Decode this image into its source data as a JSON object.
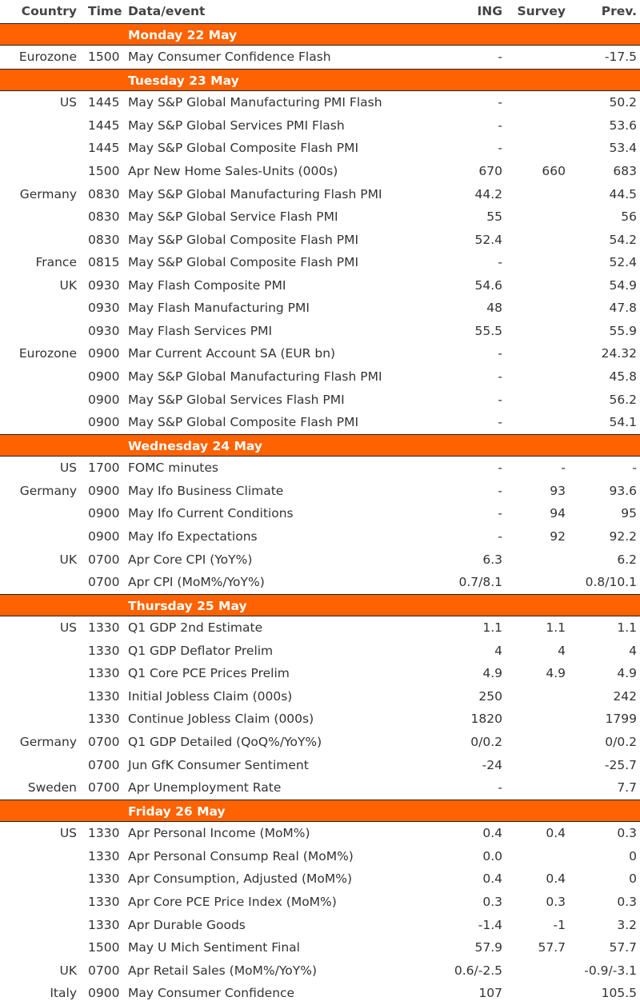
{
  "colors": {
    "accent": "#FF6200",
    "text": "#333333"
  },
  "header": {
    "country": "Country",
    "time": "Time",
    "event": "Data/event",
    "ing": "ING",
    "survey": "Survey",
    "prev": "Prev."
  },
  "days": [
    {
      "label": "Monday 22 May",
      "rows": [
        [
          "Eurozone",
          "1500",
          "May Consumer Confidence Flash",
          "-",
          "",
          "-17.5"
        ]
      ]
    },
    {
      "label": "Tuesday 23 May",
      "rows": [
        [
          "US",
          "1445",
          "May S&P Global Manufacturing PMI Flash",
          "-",
          "",
          "50.2"
        ],
        [
          "",
          "1445",
          "May S&P Global Services PMI Flash",
          "-",
          "",
          "53.6"
        ],
        [
          "",
          "1445",
          "May S&P Global Composite Flash PMI",
          "-",
          "",
          "53.4"
        ],
        [
          "",
          "1500",
          "Apr New Home Sales-Units (000s)",
          "670",
          "660",
          "683"
        ],
        [
          "Germany",
          "0830",
          "May S&P Global Manufacturing Flash PMI",
          "44.2",
          "",
          "44.5"
        ],
        [
          "",
          "0830",
          "May S&P Global Service Flash PMI",
          "55",
          "",
          "56"
        ],
        [
          "",
          "0830",
          "May S&P Global Composite Flash PMI",
          "52.4",
          "",
          "54.2"
        ],
        [
          "France",
          "0815",
          "May S&P Global Composite Flash PMI",
          "-",
          "",
          "52.4"
        ],
        [
          "UK",
          "0930",
          "May Flash Composite PMI",
          "54.6",
          "",
          "54.9"
        ],
        [
          "",
          "0930",
          "May Flash Manufacturing PMI",
          "48",
          "",
          "47.8"
        ],
        [
          "",
          "0930",
          "May Flash Services PMI",
          "55.5",
          "",
          "55.9"
        ],
        [
          "Eurozone",
          "0900",
          "Mar Current Account SA (EUR bn)",
          "-",
          "",
          "24.32"
        ],
        [
          "",
          "0900",
          "May S&P Global Manufacturing Flash PMI",
          "-",
          "",
          "45.8"
        ],
        [
          "",
          "0900",
          "May S&P Global Services Flash PMI",
          "-",
          "",
          "56.2"
        ],
        [
          "",
          "0900",
          "May S&P Global Composite Flash PMI",
          "-",
          "",
          "54.1"
        ]
      ]
    },
    {
      "label": "Wednesday 24 May",
      "rows": [
        [
          "US",
          "1700",
          "FOMC minutes",
          "-",
          "-",
          "-"
        ],
        [
          "Germany",
          "0900",
          "May Ifo Business Climate",
          "-",
          "93",
          "93.6"
        ],
        [
          "",
          "0900",
          "May Ifo Current Conditions",
          "-",
          "94",
          "95"
        ],
        [
          "",
          "0900",
          "May Ifo Expectations",
          "-",
          "92",
          "92.2"
        ],
        [
          "UK",
          "0700",
          "Apr Core CPI (YoY%)",
          "6.3",
          "",
          "6.2"
        ],
        [
          "",
          "0700",
          "Apr CPI (MoM%/YoY%)",
          "0.7/8.1",
          "",
          "0.8/10.1"
        ]
      ]
    },
    {
      "label": "Thursday 25 May",
      "rows": [
        [
          "US",
          "1330",
          "Q1 GDP 2nd Estimate",
          "1.1",
          "1.1",
          "1.1"
        ],
        [
          "",
          "1330",
          "Q1 GDP Deflator Prelim",
          "4",
          "4",
          "4"
        ],
        [
          "",
          "1330",
          "Q1 Core PCE Prices Prelim",
          "4.9",
          "4.9",
          "4.9"
        ],
        [
          "",
          "1330",
          "Initial Jobless Claim (000s)",
          "250",
          "",
          "242"
        ],
        [
          "",
          "1330",
          "Continue Jobless Claim (000s)",
          "1820",
          "",
          "1799"
        ],
        [
          "Germany",
          "0700",
          "Q1 GDP Detailed (QoQ%/YoY%)",
          "0/0.2",
          "",
          "0/0.2"
        ],
        [
          "",
          "0700",
          "Jun GfK Consumer Sentiment",
          "-24",
          "",
          "-25.7"
        ],
        [
          "Sweden",
          "0700",
          "Apr Unemployment Rate",
          "-",
          "",
          "7.7"
        ]
      ]
    },
    {
      "label": "Friday 26 May",
      "rows": [
        [
          "US",
          "1330",
          "Apr Personal Income (MoM%)",
          "0.4",
          "0.4",
          "0.3"
        ],
        [
          "",
          "1330",
          "Apr Personal Consump Real (MoM%)",
          "0.0",
          "",
          "0"
        ],
        [
          "",
          "1330",
          "Apr Consumption, Adjusted (MoM%)",
          "0.4",
          "0.4",
          "0"
        ],
        [
          "",
          "1330",
          "Apr Core PCE Price Index (MoM%)",
          "0.3",
          "0.3",
          "0.3"
        ],
        [
          "",
          "1330",
          "Apr Durable Goods",
          "-1.4",
          "-1",
          "3.2"
        ],
        [
          "",
          "1500",
          "May U Mich Sentiment Final",
          "57.9",
          "57.7",
          "57.7"
        ],
        [
          "UK",
          "0700",
          "Apr Retail Sales (MoM%/YoY%)",
          "0.6/-2.5",
          "",
          "-0.9/-3.1"
        ],
        [
          "Italy",
          "0900",
          "May Consumer Confidence",
          "107",
          "",
          "105.5"
        ]
      ]
    }
  ]
}
